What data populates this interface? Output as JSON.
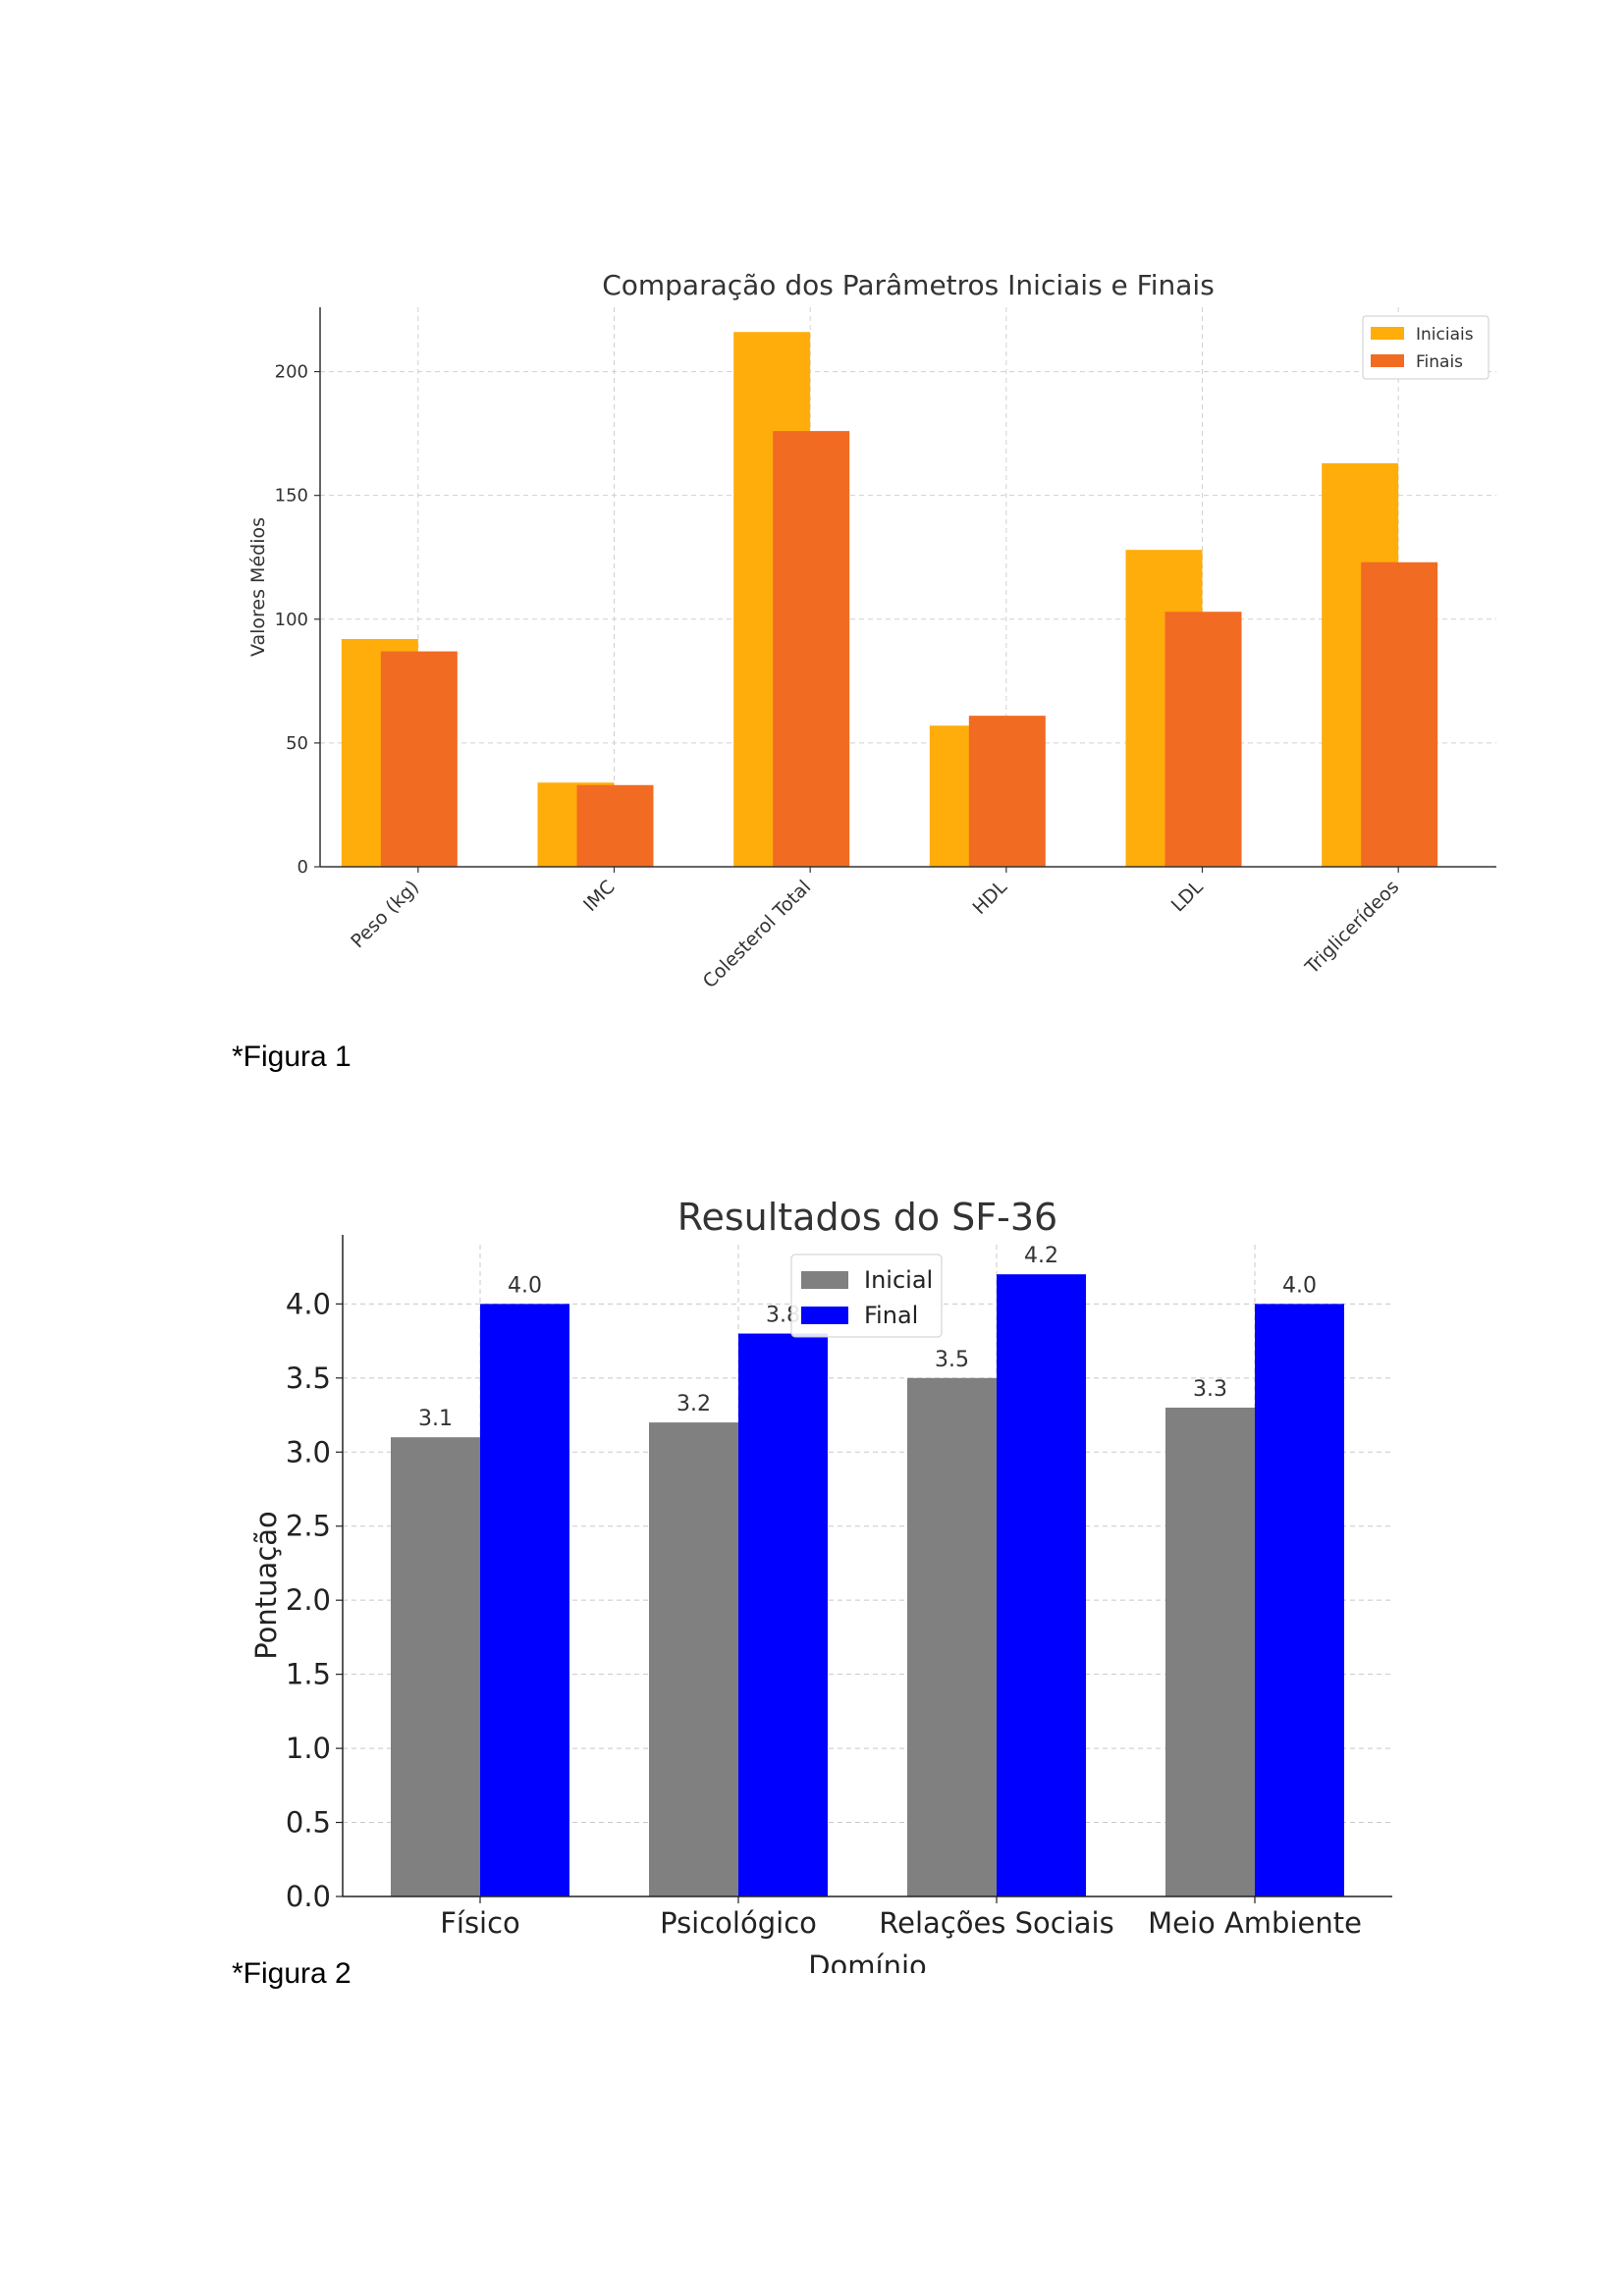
{
  "chart_data": [
    {
      "type": "bar",
      "title": "Comparação dos Parâmetros Iniciais e Finais",
      "xlabel": "",
      "ylabel": "Valores Médios",
      "categories": [
        "Peso (kg)",
        "IMC",
        "Colesterol Total",
        "HDL",
        "LDL",
        "Triglicerídeos"
      ],
      "series": [
        {
          "name": "Iniciais",
          "color": "#FFAD0A",
          "values": [
            92,
            34,
            216,
            57,
            128,
            163
          ]
        },
        {
          "name": "Finais",
          "color": "#F26B22",
          "values": [
            87,
            33,
            176,
            61,
            103,
            123
          ]
        }
      ],
      "ylim": [
        0,
        226
      ],
      "yticks": [
        0,
        50,
        100,
        150,
        200
      ],
      "grid": true,
      "legend": "top-right"
    },
    {
      "type": "bar",
      "title": "Resultados do SF-36",
      "xlabel": "Domínio",
      "ylabel": "Pontuação",
      "categories": [
        "Físico",
        "Psicológico",
        "Relações Sociais",
        "Meio Ambiente"
      ],
      "series": [
        {
          "name": "Inicial",
          "color": "#808080",
          "values": [
            3.1,
            3.2,
            3.5,
            3.3
          ],
          "labels": [
            "3.1",
            "3.2",
            "3.5",
            "3.3"
          ]
        },
        {
          "name": "Final",
          "color": "#0000FF",
          "values": [
            4.0,
            3.8,
            4.2,
            4.0
          ],
          "labels": [
            "4.0",
            "3.8",
            "4.2",
            "4.0"
          ]
        }
      ],
      "ylim": [
        0,
        4.4
      ],
      "yticks": [
        "0.0",
        "0.5",
        "1.0",
        "1.5",
        "2.0",
        "2.5",
        "3.0",
        "3.5",
        "4.0"
      ],
      "grid": true,
      "legend": "upper-center",
      "data_labels": true
    }
  ],
  "captions": {
    "figure1": "*Figura 1",
    "figure2": "*Figura 2"
  }
}
